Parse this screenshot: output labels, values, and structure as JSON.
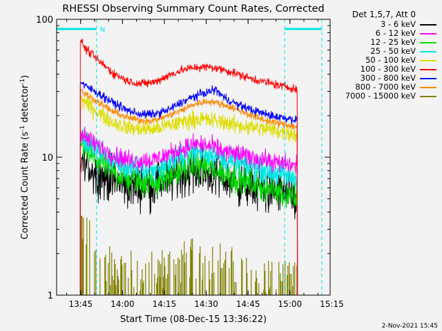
{
  "chart_data": {
    "type": "line",
    "title": "RHESSI Observing Summary Count Rates, Corrected",
    "xlabel": "Start Time (08-Dec-15 13:36:22)",
    "ylabel": "Corrected Count Rate (s⁻¹ detector⁻¹)",
    "ylabel_base": "Corrected Count Rate (s",
    "ylabel_exp1": "-1",
    "ylabel_mid": " detector",
    "ylabel_exp2": "-1",
    "ylabel_end": ")",
    "x_unit": "minutes since 13:36:22",
    "xlim": [
      0,
      98
    ],
    "ylim": [
      1,
      100
    ],
    "yscale": "log",
    "xticks": [
      {
        "v": 8.6,
        "label": "13:45"
      },
      {
        "v": 23.6,
        "label": "14:00"
      },
      {
        "v": 38.6,
        "label": "14:15"
      },
      {
        "v": 53.6,
        "label": "14:30"
      },
      {
        "v": 68.6,
        "label": "14:45"
      },
      {
        "v": 83.6,
        "label": "15:00"
      },
      {
        "v": 98.6,
        "label": "15:15"
      }
    ],
    "yticks": [
      {
        "v": 1,
        "label": "1"
      },
      {
        "v": 10,
        "label": "10"
      },
      {
        "v": 100,
        "label": "100"
      }
    ],
    "legend_title": "Det 1,5,7, Att 0",
    "legend_position": "outside-right",
    "data_start": 8.5,
    "data_end": 86.3,
    "night_periods": [
      {
        "x0": 0,
        "x1": 14.3,
        "label": "N"
      },
      {
        "x0": 81.7,
        "x1": 95,
        "label": ""
      }
    ],
    "night_color": "#00e5e5",
    "series": [
      {
        "name": "3 - 6 keV",
        "color": "#000000",
        "x": [
          8.7,
          10,
          15,
          20,
          25,
          30,
          35,
          40,
          45,
          50,
          55,
          60,
          65,
          70,
          75,
          80,
          84,
          86
        ],
        "values": [
          9.5,
          9,
          7.5,
          6.8,
          6.2,
          6.2,
          6.3,
          7,
          7.5,
          8,
          7.5,
          7,
          6.5,
          6,
          5.8,
          5.5,
          5.2,
          5
        ],
        "noise": 0.18
      },
      {
        "name": "6 - 12 keV",
        "color": "#ff00ff",
        "x": [
          8.7,
          10,
          15,
          20,
          25,
          30,
          35,
          40,
          45,
          50,
          55,
          60,
          65,
          70,
          75,
          80,
          84,
          86
        ],
        "values": [
          15,
          14,
          12,
          10.5,
          9.6,
          9.4,
          9.6,
          10.5,
          11.5,
          12.5,
          12,
          11,
          10.5,
          10,
          9.5,
          9,
          8.8,
          8.6
        ],
        "noise": 0.08
      },
      {
        "name": "12 - 25 keV",
        "color": "#00dd00",
        "x": [
          8.7,
          10,
          15,
          20,
          25,
          30,
          35,
          40,
          45,
          50,
          55,
          60,
          65,
          70,
          75,
          80,
          84,
          86
        ],
        "values": [
          12.5,
          11.5,
          9.5,
          8,
          7,
          6.6,
          6.6,
          7.3,
          8.2,
          9,
          8.5,
          7.6,
          7,
          6.5,
          6,
          5.6,
          5.3,
          5.2
        ],
        "noise": 0.12
      },
      {
        "name": "25 - 50 keV",
        "color": "#00e5e5",
        "x": [
          8.7,
          10,
          15,
          20,
          25,
          30,
          35,
          40,
          45,
          50,
          55,
          60,
          65,
          70,
          75,
          80,
          84,
          86
        ],
        "values": [
          14,
          13,
          11,
          9.5,
          8.5,
          8,
          8,
          9,
          10.2,
          11,
          10.6,
          9.6,
          9,
          8.5,
          8,
          7.5,
          7.2,
          7
        ],
        "noise": 0.1
      },
      {
        "name": "50 - 100 keV",
        "color": "#dddd00",
        "x": [
          8.7,
          10,
          15,
          20,
          25,
          30,
          35,
          40,
          45,
          50,
          55,
          60,
          65,
          70,
          75,
          80,
          84,
          86
        ],
        "values": [
          27,
          25,
          21,
          18,
          16.5,
          16,
          16,
          17,
          18,
          19,
          18.5,
          18,
          17,
          16.5,
          16,
          15.5,
          15,
          14.5
        ],
        "noise": 0.07
      },
      {
        "name": "100 - 300 keV",
        "color": "#ff0000",
        "x": [
          8.7,
          10,
          15,
          20,
          25,
          30,
          35,
          40,
          45,
          50,
          55,
          60,
          65,
          70,
          75,
          80,
          84,
          86
        ],
        "values": [
          72,
          62,
          50,
          41,
          36,
          34,
          35,
          39,
          43,
          45,
          45,
          43,
          40,
          37,
          35,
          33,
          32,
          31
        ],
        "noise": 0.035
      },
      {
        "name": "300 - 800 keV",
        "color": "#0000ff",
        "x": [
          8.7,
          10,
          15,
          20,
          25,
          30,
          35,
          40,
          45,
          50,
          55,
          57,
          60,
          65,
          70,
          75,
          80,
          84,
          86
        ],
        "values": [
          35,
          33,
          29,
          25,
          22,
          20.5,
          20.5,
          22,
          25,
          28,
          30,
          31,
          27,
          24,
          22,
          20.5,
          19.5,
          19,
          18.5
        ],
        "noise": 0.035
      },
      {
        "name": "800 - 7000 keV",
        "color": "#ff8800",
        "x": [
          8.7,
          10,
          15,
          20,
          25,
          30,
          35,
          40,
          45,
          50,
          55,
          60,
          65,
          70,
          75,
          80,
          84,
          86
        ],
        "values": [
          31,
          29,
          25,
          21.5,
          19.5,
          18.5,
          18.5,
          20,
          22,
          24.5,
          25.5,
          24,
          22,
          20,
          18.5,
          17.5,
          17,
          16.5
        ],
        "noise": 0.03
      },
      {
        "name": "7000 - 15000 keV",
        "color": "#808000",
        "x": [
          8.7,
          10,
          12,
          14,
          20,
          30,
          40,
          50,
          60,
          70,
          80,
          86
        ],
        "values": [
          3,
          2.6,
          2.2,
          1.8,
          1.4,
          1.25,
          1.4,
          1.6,
          1.5,
          1.25,
          1.1,
          1.05
        ],
        "noise": 0.18,
        "mode": "bars"
      }
    ]
  },
  "footer_date": "2-Nov-2021 15:45"
}
